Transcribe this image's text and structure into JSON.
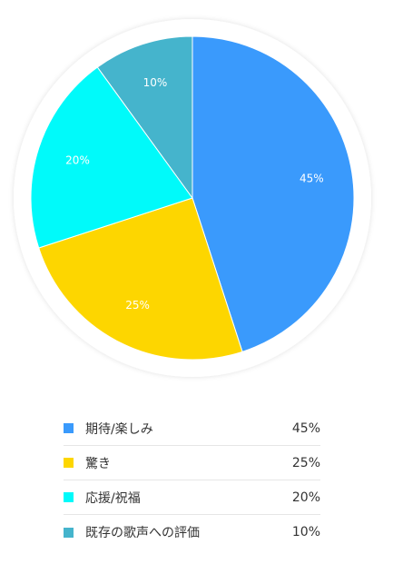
{
  "chart_data": {
    "type": "pie",
    "slices": [
      {
        "label": "期待/楽しみ",
        "value": 45,
        "display": "45%",
        "color": "#3a9afc"
      },
      {
        "label": "驚き",
        "value": 25,
        "display": "25%",
        "color": "#fdd600"
      },
      {
        "label": "応援/祝福",
        "value": 20,
        "display": "20%",
        "color": "#00fafa"
      },
      {
        "label": "既存の歌声への評価",
        "value": 10,
        "display": "10%",
        "color": "#45b4cc"
      }
    ]
  }
}
